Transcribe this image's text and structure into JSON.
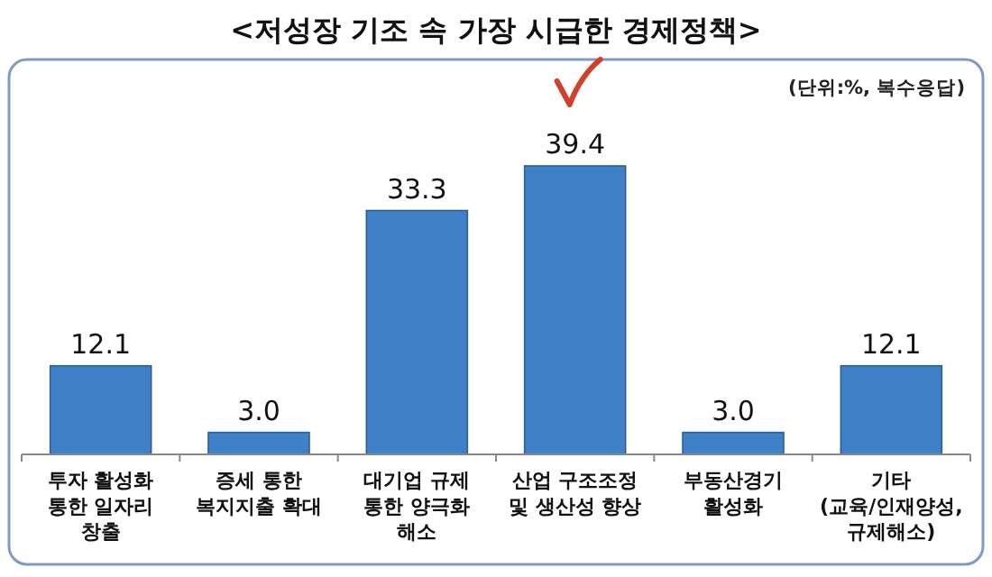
{
  "chart_data": {
    "type": "bar",
    "title": "<저성장 기조 속 가장 시급한 경제정책>",
    "annotations": [
      "(단위:%, 복수응답)"
    ],
    "categories": [
      "투자 활성화 통한 일자리 창출",
      "증세 통한 복지지출 확대",
      "대기업 규제 통한 양극화 해소",
      "산업 구조조정 및 생산성 향상",
      "부동산경기 활성화",
      "기타 (교육/인재양성, 규제해소)"
    ],
    "values": [
      12.1,
      3.0,
      33.3,
      39.4,
      3.0,
      12.1
    ],
    "value_labels": [
      "12.1",
      "3.0",
      "33.3",
      "39.4",
      "3.0",
      "12.1"
    ],
    "color": "#3f80c6"
  }
}
